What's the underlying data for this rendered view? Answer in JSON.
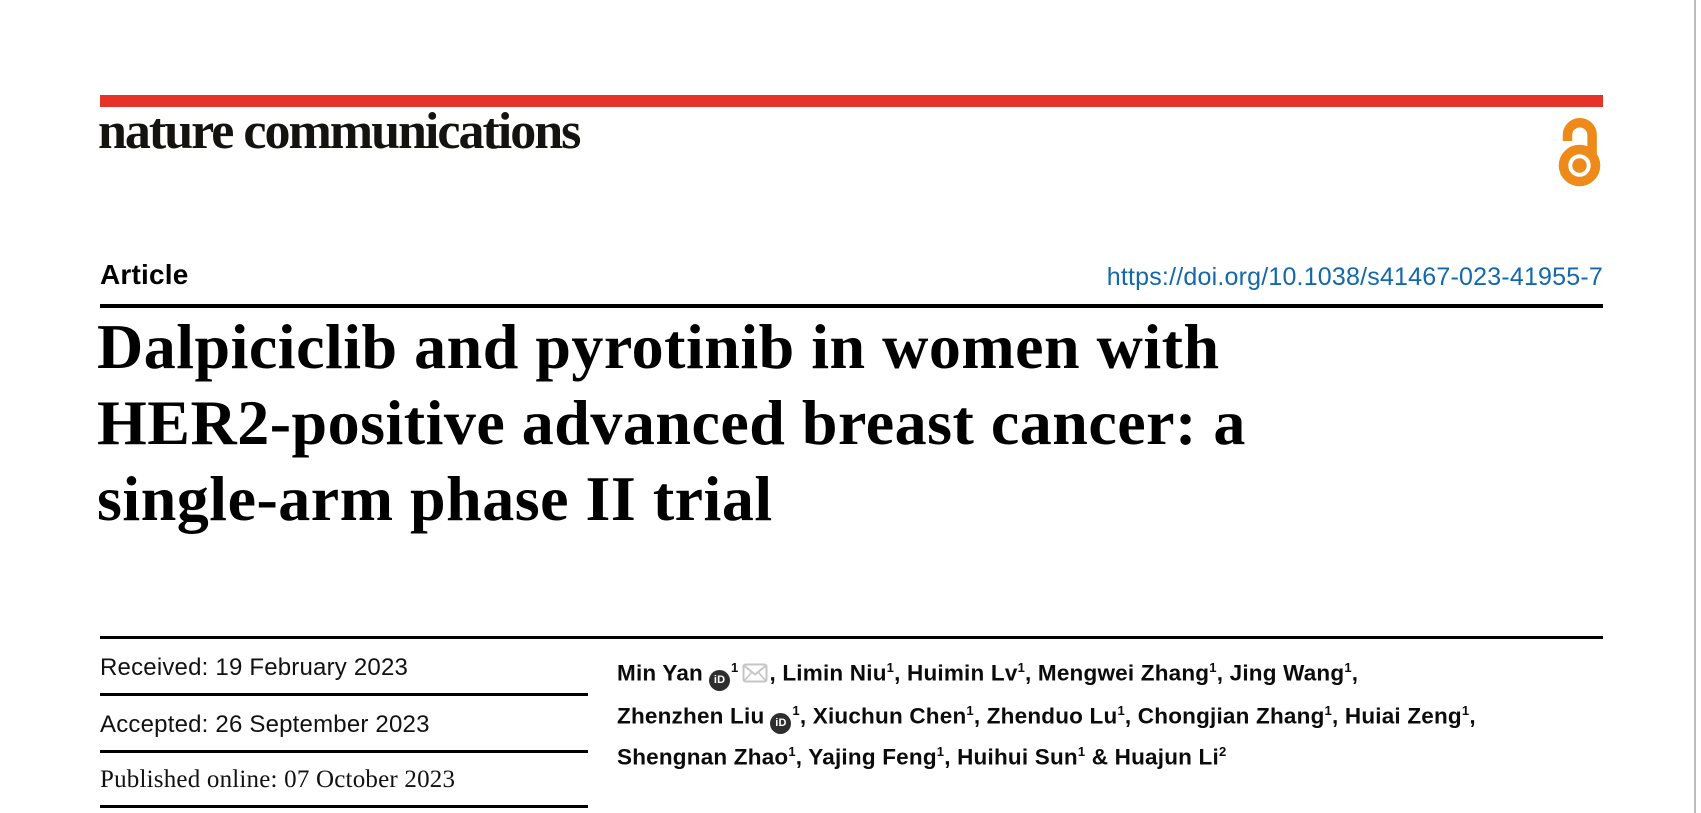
{
  "masthead": {
    "journal_name": "nature communications",
    "bar_color": "#e53327",
    "open_access_color": "#ee8a1a"
  },
  "article": {
    "type_label": "Article",
    "doi": "https://doi.org/10.1038/s41467-023-41955-7",
    "doi_color": "#1268ab",
    "title_lines": [
      "Dalpiciclib and pyrotinib in women with",
      "HER2-positive advanced breast cancer: a",
      "single-arm phase II trial"
    ]
  },
  "dates": {
    "received": "Received: 19 February 2023",
    "accepted": "Accepted: 26 September 2023",
    "published_online": "Published online: 07 October 2023"
  },
  "authors": {
    "orcid_icon_text": "iD",
    "list": [
      {
        "name": "Min Yan",
        "sup": "1",
        "orcid": true,
        "email": true,
        "sep": ", "
      },
      {
        "name": "Limin Niu",
        "sup": "1",
        "orcid": false,
        "email": false,
        "sep": ", "
      },
      {
        "name": "Huimin Lv",
        "sup": "1",
        "orcid": false,
        "email": false,
        "sep": ", "
      },
      {
        "name": "Mengwei Zhang",
        "sup": "1",
        "orcid": false,
        "email": false,
        "sep": ", "
      },
      {
        "name": "Jing Wang",
        "sup": "1",
        "orcid": false,
        "email": false,
        "sep": ",",
        "break": true
      },
      {
        "name": "Zhenzhen Liu",
        "sup": "1",
        "orcid": true,
        "email": false,
        "sep": ", "
      },
      {
        "name": "Xiuchun Chen",
        "sup": "1",
        "orcid": false,
        "email": false,
        "sep": ", "
      },
      {
        "name": "Zhenduo Lu",
        "sup": "1",
        "orcid": false,
        "email": false,
        "sep": ", "
      },
      {
        "name": "Chongjian Zhang",
        "sup": "1",
        "orcid": false,
        "email": false,
        "sep": ", "
      },
      {
        "name": "Huiai Zeng",
        "sup": "1",
        "orcid": false,
        "email": false,
        "sep": ",",
        "break": true
      },
      {
        "name": "Shengnan Zhao",
        "sup": "1",
        "orcid": false,
        "email": false,
        "sep": ", "
      },
      {
        "name": "Yajing Feng",
        "sup": "1",
        "orcid": false,
        "email": false,
        "sep": ", "
      },
      {
        "name": "Huihui Sun",
        "sup": "1",
        "orcid": false,
        "email": false,
        "sep": " & "
      },
      {
        "name": "Huajun Li",
        "sup": "2",
        "orcid": false,
        "email": false,
        "sep": ""
      }
    ]
  }
}
